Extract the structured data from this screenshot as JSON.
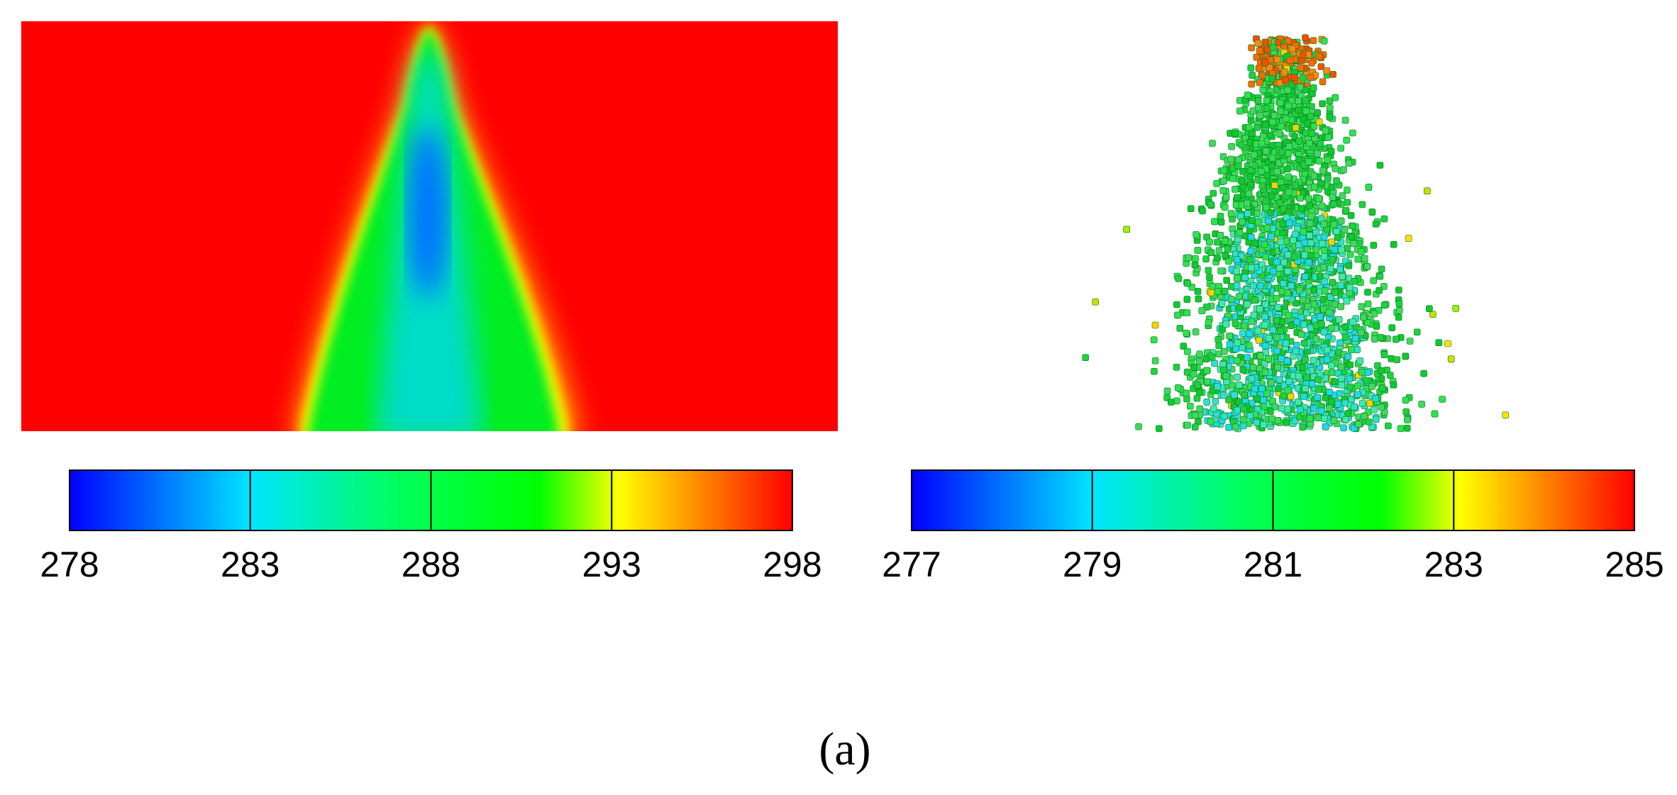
{
  "panels": [
    {
      "colorbar": {
        "lim": [
          278,
          298
        ],
        "ticks": [
          278,
          283,
          288,
          293,
          298
        ]
      }
    },
    {
      "colorbar": {
        "lim": [
          277,
          285
        ],
        "ticks": [
          277,
          279,
          281,
          283,
          285
        ]
      }
    }
  ],
  "caption": "(a)"
}
